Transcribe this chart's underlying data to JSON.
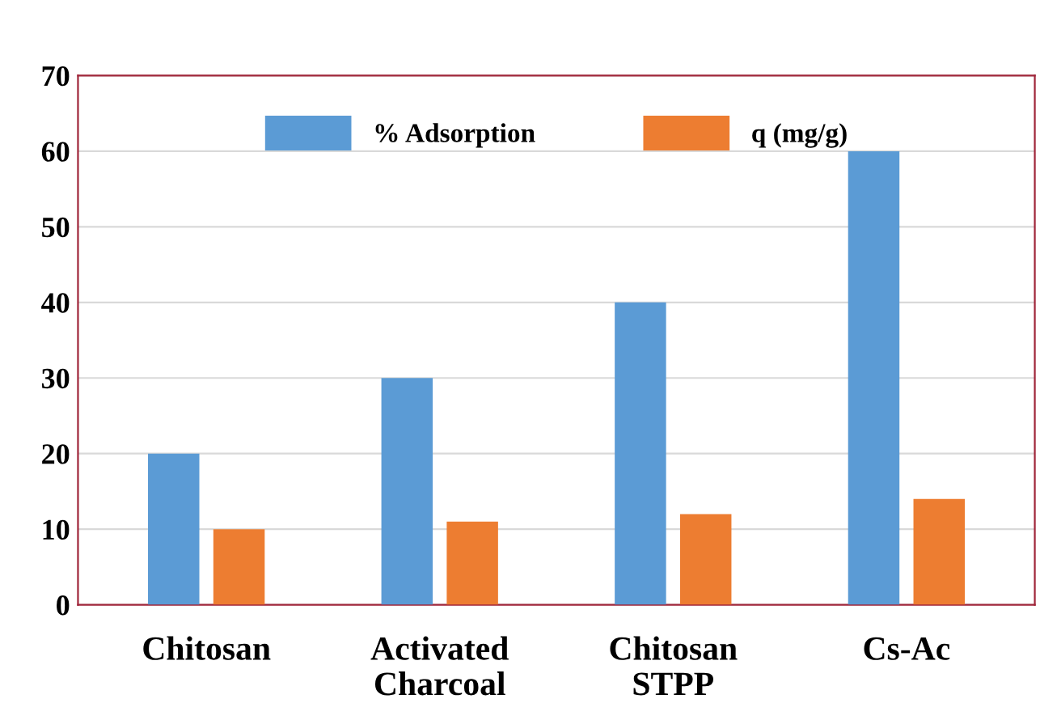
{
  "chart_data": {
    "type": "bar",
    "categories": [
      "Chitosan",
      "Activated\nCharcoal",
      "Chitosan\nSTPP",
      "Cs-Ac"
    ],
    "series": [
      {
        "name": "% Adsorption",
        "color": "#5b9bd5",
        "values": [
          20,
          30,
          40,
          60
        ]
      },
      {
        "name": "q (mg/g)",
        "color": "#ed7d31",
        "values": [
          10,
          11,
          12,
          14
        ]
      }
    ],
    "ylim": [
      0,
      70
    ],
    "yticks": [
      0,
      10,
      20,
      30,
      40,
      50,
      60,
      70
    ],
    "grid": "y",
    "legend": "top"
  }
}
